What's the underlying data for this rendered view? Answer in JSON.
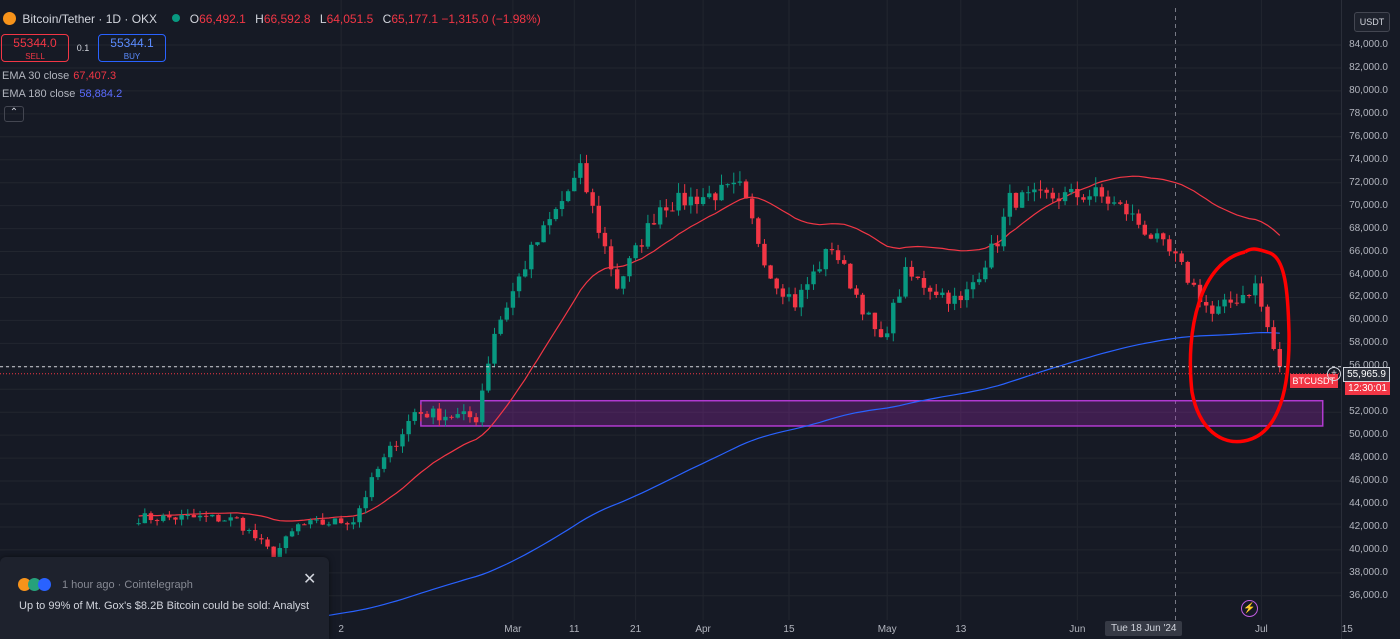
{
  "legend": {
    "symbol": "Bitcoin/Tether · 1D · OKX",
    "o_label": "O",
    "o_value": "66,492.1",
    "h_label": "H",
    "h_value": "66,592.8",
    "l_label": "L",
    "l_value": "64,051.5",
    "c_label": "C",
    "c_value": "65,177.1 −1,315.0 (−1.98%)"
  },
  "trade": {
    "sell_price": "55344.0",
    "sell_label": "SELL",
    "spread": "0.1",
    "buy_price": "55344.1",
    "buy_label": "BUY"
  },
  "indicators": [
    {
      "label": "EMA 30 close",
      "value": "67,407.3",
      "color": "#f23645"
    },
    {
      "label": "EMA 180 close",
      "value": "58,884.2",
      "color": "#2962ff"
    }
  ],
  "collapse_icon": "chevron-up-icon",
  "currency": "USDT",
  "price_axis": [
    "84,000.0",
    "82,000.0",
    "80,000.0",
    "78,000.0",
    "76,000.0",
    "74,000.0",
    "72,000.0",
    "70,000.0",
    "68,000.0",
    "66,000.0",
    "64,000.0",
    "62,000.0",
    "60,000.0",
    "58,000.0",
    "56,000.0",
    "54,000.0",
    "52,000.0",
    "50,000.0",
    "48,000.0",
    "46,000.0",
    "44,000.0",
    "42,000.0",
    "40,000.0",
    "38,000.0",
    "36,000.0"
  ],
  "time_axis": [
    "2",
    "Mar",
    "11",
    "21",
    "Apr",
    "15",
    "May",
    "13",
    "Jun",
    "Jul",
    "15"
  ],
  "crosshair_date": "Tue 18 Jun '24",
  "current_price": "55,965.9",
  "countdown": "12:30:01",
  "symbol_tag": "BTCUSDT",
  "colors": {
    "up": "#089981",
    "down": "#f23645",
    "ema30": "#f23645",
    "ema180": "#2962ff",
    "zone": "#9c27b0",
    "annotation": "#ff0000"
  },
  "chart_data": {
    "type": "candlestick",
    "y_range": [
      35000,
      85000
    ],
    "support_zone": [
      50800,
      53000
    ],
    "anchors": [
      [
        "2024-01-12",
        42800
      ],
      [
        "2024-01-17",
        42600
      ],
      [
        "2024-01-23",
        39500
      ],
      [
        "2024-01-27",
        42100
      ],
      [
        "2024-02-05",
        42600
      ],
      [
        "2024-02-09",
        47000
      ],
      [
        "2024-02-15",
        52000
      ],
      [
        "2024-02-25",
        51500
      ],
      [
        "2024-02-28",
        59000
      ],
      [
        "2024-03-05",
        66000
      ],
      [
        "2024-03-13",
        73000
      ],
      [
        "2024-03-19",
        63000
      ],
      [
        "2024-03-26",
        70000
      ],
      [
        "2024-04-08",
        71500
      ],
      [
        "2024-04-13",
        64000
      ],
      [
        "2024-04-17",
        61500
      ],
      [
        "2024-04-23",
        66500
      ],
      [
        "2024-05-01",
        58000
      ],
      [
        "2024-05-05",
        64000
      ],
      [
        "2024-05-14",
        61500
      ],
      [
        "2024-05-20",
        67000
      ],
      [
        "2024-05-22",
        70500
      ],
      [
        "2024-06-05",
        71000
      ],
      [
        "2024-06-10",
        69500
      ],
      [
        "2024-06-18",
        65300
      ],
      [
        "2024-06-24",
        60500
      ],
      [
        "2024-07-01",
        63000
      ],
      [
        "2024-07-04",
        57500
      ],
      [
        "2024-07-05",
        55966
      ]
    ],
    "ema30_last": 67407.3,
    "ema180_last": 58884.2
  },
  "news": {
    "time": "1 hour ago",
    "source": "Cointelegraph",
    "headline": "Up to 99% of Mt. Gox's $8.2B Bitcoin could be sold: Analyst",
    "close_icon": "close-icon"
  },
  "lightning_icon": "lightning-icon"
}
